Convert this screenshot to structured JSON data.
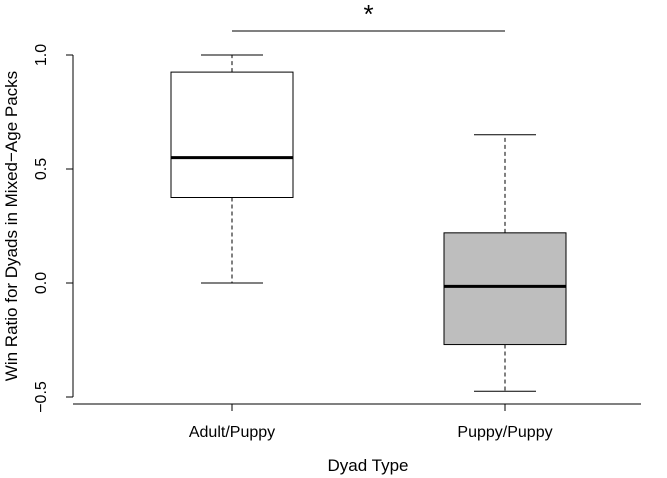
{
  "chart_data": {
    "type": "boxplot",
    "xlabel": "Dyad Type",
    "ylabel": "Win Ratio for Dyads in Mixed−Age Packs",
    "ylim": [
      -0.5,
      1.0
    ],
    "yticks": [
      -0.5,
      0.0,
      0.5,
      1.0
    ],
    "ytick_labels": [
      "−0.5",
      "0.0",
      "0.5",
      "1.0"
    ],
    "categories": [
      "Adult/Puppy",
      "Puppy/Puppy"
    ],
    "boxes": [
      {
        "category": "Adult/Puppy",
        "whisker_low": 0.0,
        "q1": 0.375,
        "median": 0.55,
        "q3": 0.925,
        "whisker_high": 1.0,
        "fill": "#ffffff"
      },
      {
        "category": "Puppy/Puppy",
        "whisker_low": -0.475,
        "q1": -0.27,
        "median": -0.015,
        "q3": 0.22,
        "whisker_high": 0.65,
        "fill": "#bebebe"
      }
    ],
    "significance": {
      "label": "*",
      "between": [
        "Adult/Puppy",
        "Puppy/Puppy"
      ]
    },
    "grid": false,
    "legend": "none"
  }
}
